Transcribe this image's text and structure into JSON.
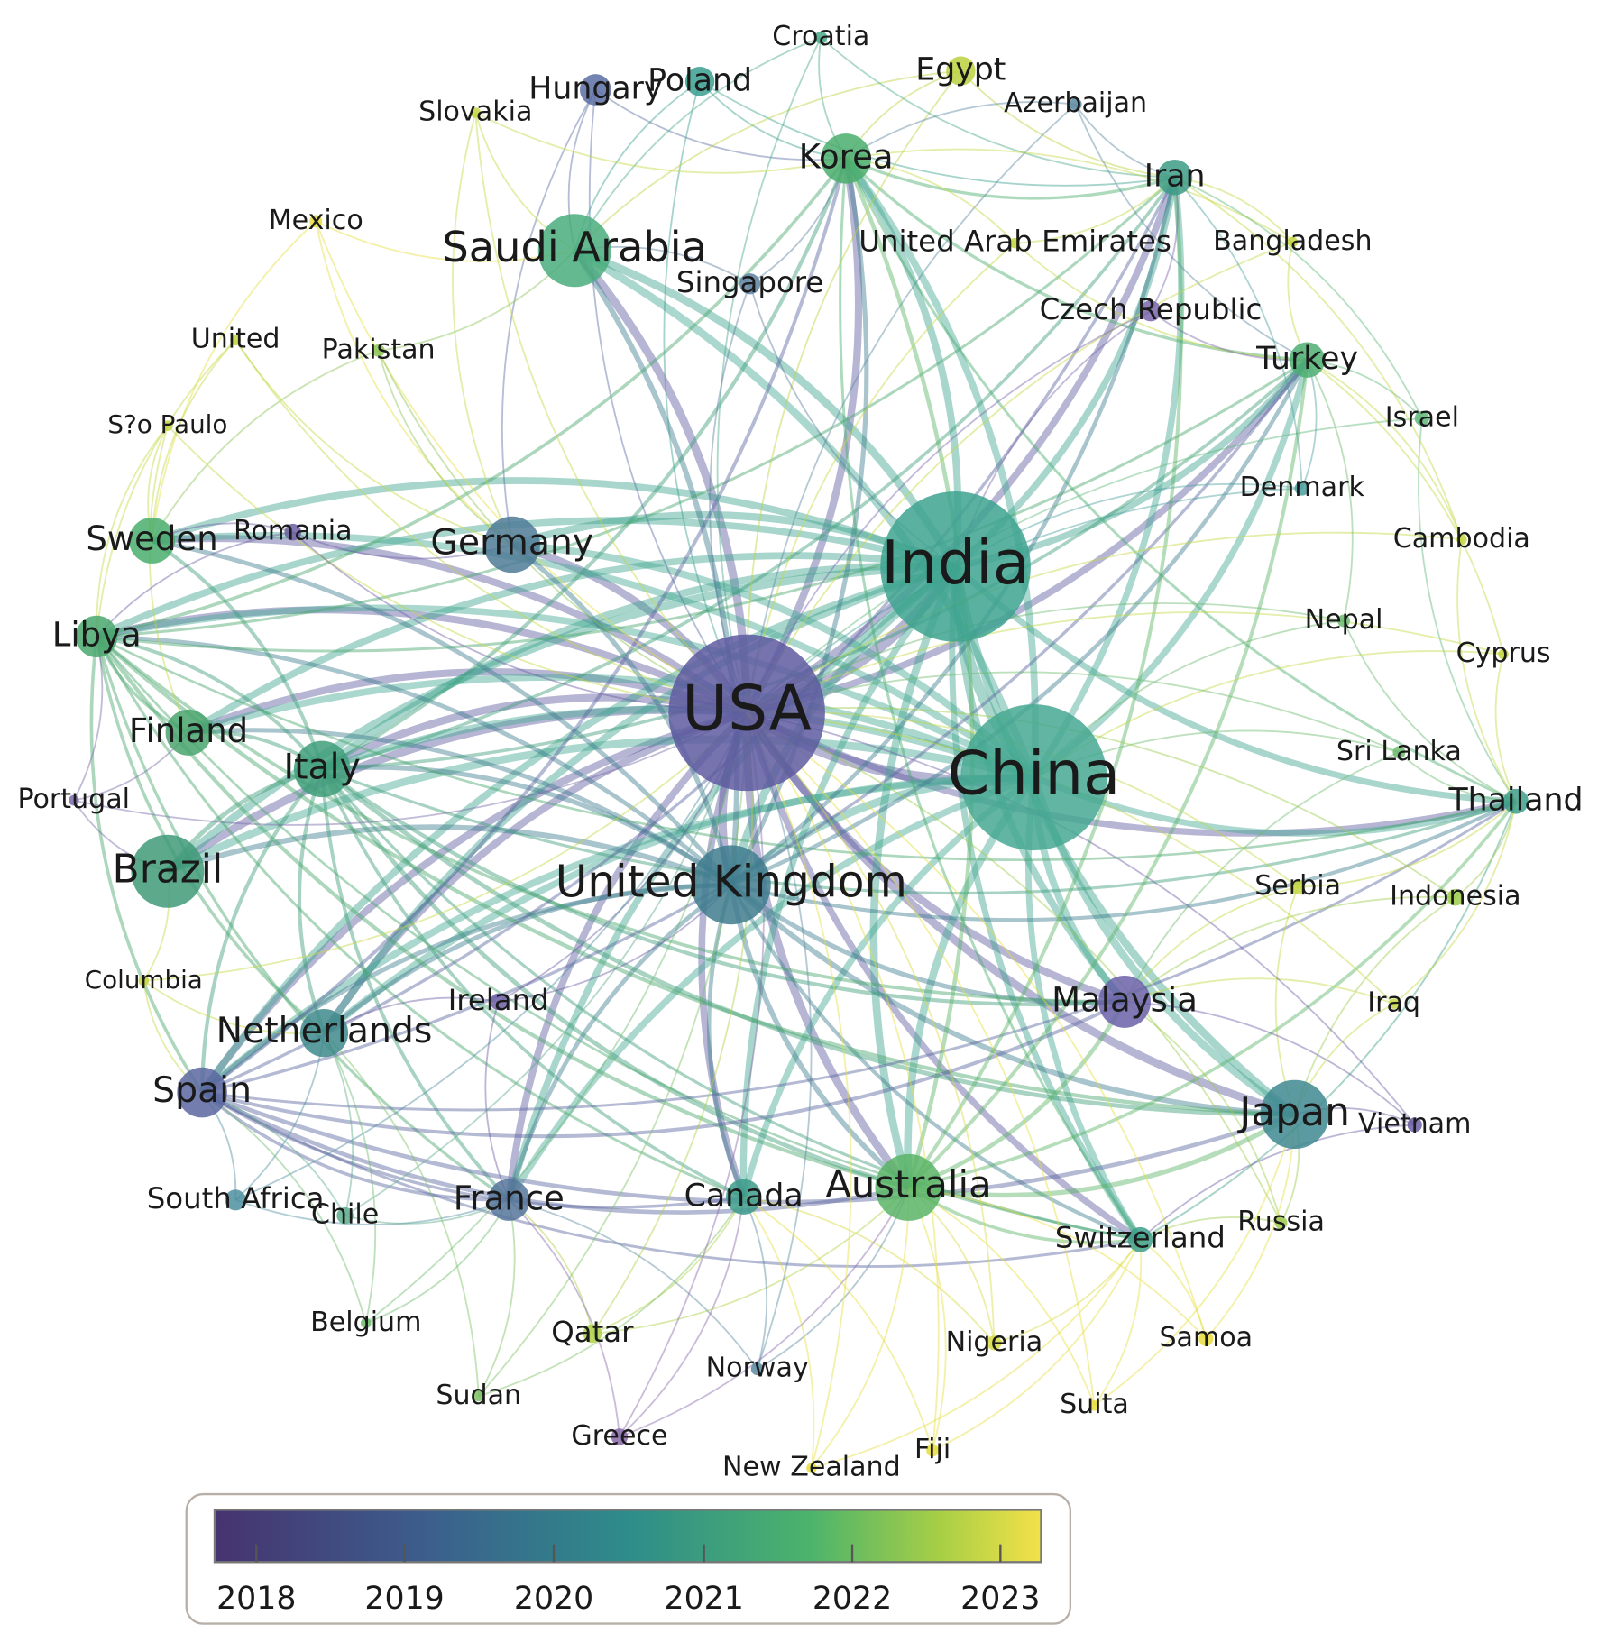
{
  "nodes": [
    "USA",
    "India",
    "China",
    "United Kingdom",
    "Saudi Arabia",
    "Germany",
    "Italy",
    "Brazil",
    "Sweden",
    "Libya",
    "Finland",
    "Netherlands",
    "Spain",
    "France",
    "Canada",
    "Australia",
    "Japan",
    "Malaysia",
    "Korea",
    "Iran",
    "Turkey",
    "Switzerland",
    "Thailand",
    "Hungary",
    "Poland",
    "Egypt",
    "Croatia",
    "Slovakia",
    "Azerbaijan",
    "Mexico",
    "United Arab Emirates",
    "Bangladesh",
    "Singapore",
    "Czech Republic",
    "Pakistan",
    "United",
    "S?o Paulo",
    "Israel",
    "Denmark",
    "Romania",
    "Cambodia",
    "Nepal",
    "Cyprus",
    "Sri Lanka",
    "Portugal",
    "Serbia",
    "Indonesia",
    "Columbia",
    "Ireland",
    "Iraq",
    "Vietnam",
    "South Africa",
    "Chile",
    "Russia",
    "Belgium",
    "Qatar",
    "Nigeria",
    "Samoa",
    "Norway",
    "Sudan",
    "Suita",
    "Greece",
    "Fiji",
    "New Zealand"
  ],
  "legend": {
    "ticks": [
      2018,
      2019,
      2020,
      2021,
      2022,
      2023
    ]
  }
}
